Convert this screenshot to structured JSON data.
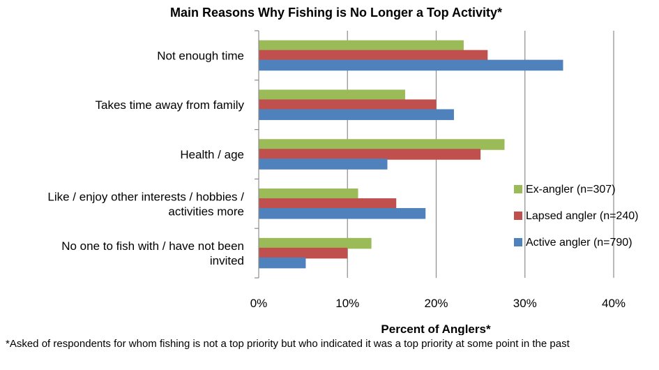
{
  "chart_data": {
    "type": "bar",
    "orientation": "horizontal",
    "title": "Main Reasons Why Fishing is No Longer a Top Activity*",
    "xlabel": "Percent of Anglers*",
    "ylabel": "",
    "xlim": [
      0,
      40
    ],
    "x_ticks": [
      "0%",
      "10%",
      "20%",
      "30%",
      "40%"
    ],
    "grid": "vertical",
    "legend_position": "right",
    "categories": [
      [
        "Not enough time"
      ],
      [
        "Takes time away from family"
      ],
      [
        "Health / age"
      ],
      [
        "Like / enjoy other interests / hobbies /",
        "activities more"
      ],
      [
        "No one to fish with / have not been",
        "invited"
      ]
    ],
    "series": [
      {
        "name": "Ex-angler (n=307)",
        "color": "#9BBB59",
        "values": [
          23.1,
          16.5,
          27.7,
          11.2,
          12.7
        ]
      },
      {
        "name": "Lapsed angler (n=240)",
        "color": "#C0504D",
        "values": [
          25.8,
          20.0,
          25.0,
          15.5,
          10.0
        ]
      },
      {
        "name": "Active angler (n=790)",
        "color": "#4F81BD",
        "values": [
          34.3,
          22.0,
          14.5,
          18.8,
          5.3
        ]
      }
    ]
  },
  "footnote": "*Asked of respondents for whom fishing is not a top priority but who indicated it was a top priority at some point in the past"
}
